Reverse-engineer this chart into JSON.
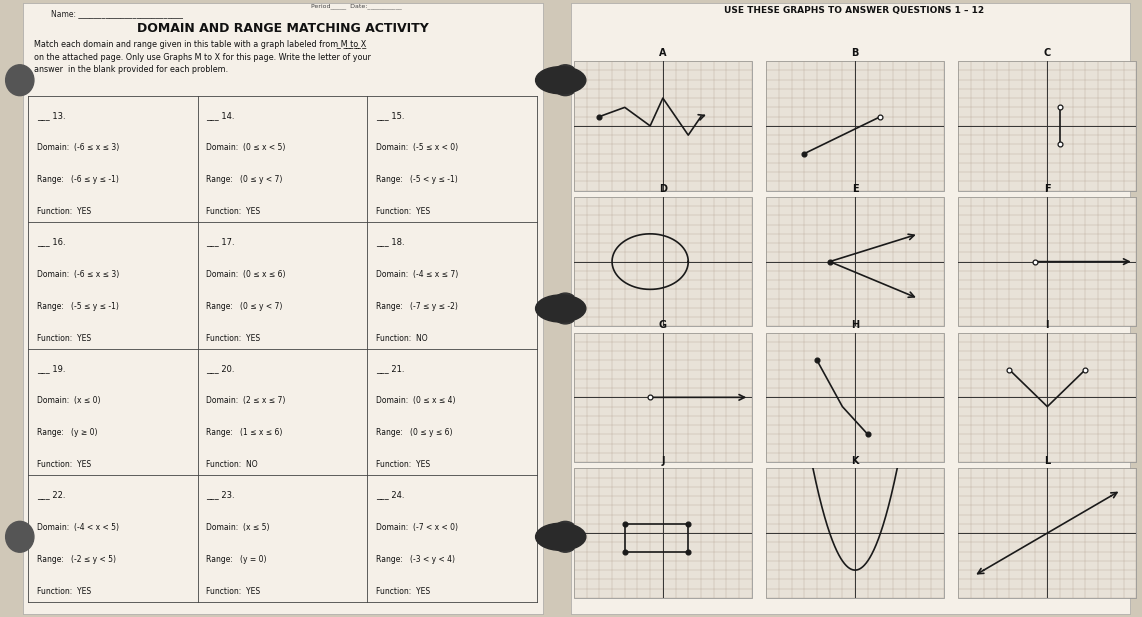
{
  "bg_color": "#d0c8b8",
  "paper_left_color": "#f0ece4",
  "paper_right_color": "#f0ece4",
  "grid_color": "#b8a898",
  "axis_color": "#222222",
  "graph_bg": "#e8e0d0",
  "line_color": "#1a1a1a",
  "right_title": "USE THESE GRAPHS TO ANSWER QUESTIONS 1 – 12",
  "rows_data": [
    [
      [
        "___ 13.",
        "Domain:  (-6 ≤ x ≤ 3)",
        "Range:   (-6 ≤ y ≤ -1)",
        "Function:  YES"
      ],
      [
        "___ 14.",
        "Domain:  (0 ≤ x < 5)",
        "Range:   (0 ≤ y < 7)",
        "Function:  YES"
      ],
      [
        "___ 15.",
        "Domain:  (-5 ≤ x < 0)",
        "Range:   (-5 < y ≤ -1)",
        "Function:  YES"
      ]
    ],
    [
      [
        "___ 16.",
        "Domain:  (-6 ≤ x ≤ 3)",
        "Range:   (-5 ≤ y ≤ -1)",
        "Function:  YES"
      ],
      [
        "___ 17.",
        "Domain:  (0 ≤ x ≤ 6)",
        "Range:   (0 ≤ y < 7)",
        "Function:  YES"
      ],
      [
        "___ 18.",
        "Domain:  (-4 ≤ x ≤ 7)",
        "Range:   (-7 ≤ y ≤ -2)",
        "Function:  NO"
      ]
    ],
    [
      [
        "___ 19.",
        "Domain:  (x ≤ 0)",
        "Range:   (y ≥ 0)",
        "Function:  YES"
      ],
      [
        "___ 20.",
        "Domain:  (2 ≤ x ≤ 7)",
        "Range:   (1 ≤ x ≤ 6)",
        "Function:  NO"
      ],
      [
        "___ 21.",
        "Domain:  (0 ≤ x ≤ 4)",
        "Range:   (0 ≤ y ≤ 6)",
        "Function:  YES"
      ]
    ],
    [
      [
        "___ 22.",
        "Domain:  (-4 < x < 5)",
        "Range:   (-2 ≤ y < 5)",
        "Function:  YES"
      ],
      [
        "___ 23.",
        "Domain:  (x ≤ 5)",
        "Range:   (y = 0)",
        "Function:  YES"
      ],
      [
        "___ 24.",
        "Domain:  (-7 < x < 0)",
        "Range:   (-3 < y < 4)",
        "Function:  YES"
      ]
    ]
  ]
}
